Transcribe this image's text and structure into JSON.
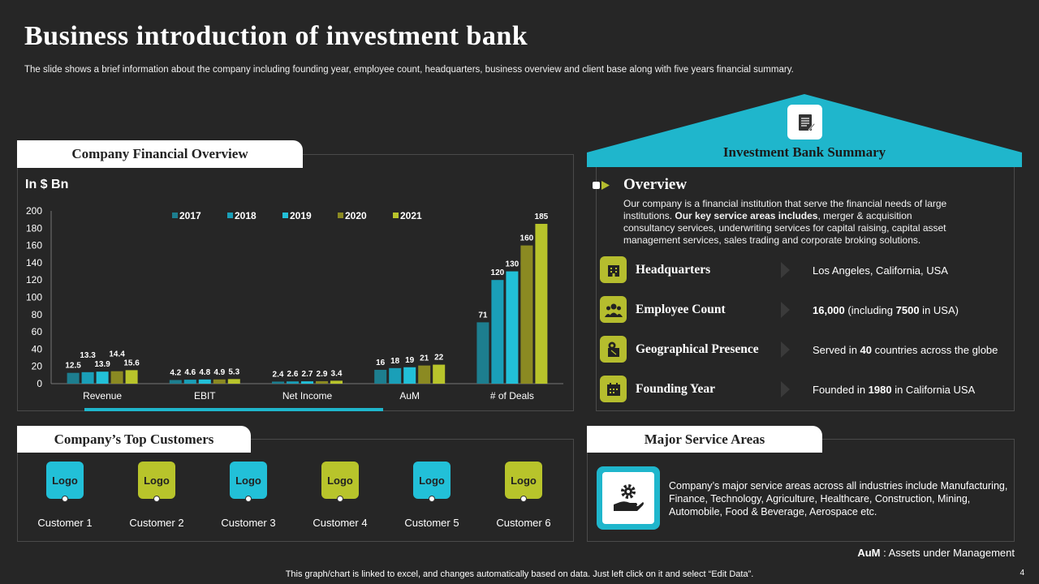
{
  "header": {
    "title": "Business introduction of investment bank",
    "subtitle": "The slide shows a brief information about the company including founding year, employee count, headquarters, business overview and client base along with five years financial summary."
  },
  "financial": {
    "tab_label": "Company Financial Overview",
    "unit": "In $ Bn"
  },
  "chart_data": {
    "type": "bar",
    "categories": [
      "Revenue",
      "EBIT",
      "Net Income",
      "AuM",
      "# of Deals"
    ],
    "series": [
      {
        "name": "2017",
        "color": "#1d7e8f",
        "values": [
          12.5,
          4.2,
          2.4,
          16,
          71
        ]
      },
      {
        "name": "2018",
        "color": "#1a9fb8",
        "values": [
          13.3,
          4.6,
          2.6,
          18,
          120
        ]
      },
      {
        "name": "2019",
        "color": "#22c0d8",
        "values": [
          13.9,
          4.8,
          2.7,
          19,
          130
        ]
      },
      {
        "name": "2020",
        "color": "#8b8a22",
        "values": [
          14.4,
          4.9,
          2.9,
          21,
          160
        ]
      },
      {
        "name": "2021",
        "color": "#b8c42b",
        "values": [
          15.6,
          5.3,
          3.4,
          22,
          185
        ]
      }
    ],
    "ylim": [
      0,
      200
    ],
    "yticks": [
      0,
      20,
      40,
      60,
      80,
      100,
      120,
      140,
      160,
      180,
      200
    ],
    "legend_position": "top-center"
  },
  "summary": {
    "title": "Investment Bank Summary",
    "overview_heading": "Overview",
    "overview_text_1": "Our company is a financial institution that serve the financial needs of large institutions. ",
    "overview_text_bold": "Our key service areas includes",
    "overview_text_2": ", merger & acquisition consultancy services, underwriting services for capital raising, capital asset management services, sales trading and corporate broking solutions.",
    "rows": [
      {
        "label": "Headquarters",
        "icon": "building-icon",
        "value_pre": "Los Angeles, California,  USA",
        "value_bold": "",
        "value_mid": "",
        "value_bold2": "",
        "value_post": ""
      },
      {
        "label": "Employee Count",
        "icon": "people-icon",
        "value_pre": "",
        "value_bold": "16,000",
        "value_mid": " (including ",
        "value_bold2": "7500",
        "value_post": " in USA)"
      },
      {
        "label": "Geographical Presence",
        "icon": "map-pin-icon",
        "value_pre": "Served  in ",
        "value_bold": "40",
        "value_mid": " countries across the globe",
        "value_bold2": "",
        "value_post": ""
      },
      {
        "label": "Founding Year",
        "icon": "calendar-icon",
        "value_pre": "Founded  in ",
        "value_bold": "1980",
        "value_mid": " in California  USA",
        "value_bold2": "",
        "value_post": ""
      }
    ]
  },
  "customers": {
    "tab_label": "Company’s Top Customers",
    "items": [
      {
        "logo": "Logo",
        "name": "Customer 1",
        "color": "#22c0d8"
      },
      {
        "logo": "Logo",
        "name": "Customer 2",
        "color": "#b8c42b"
      },
      {
        "logo": "Logo",
        "name": "Customer 3",
        "color": "#22c0d8"
      },
      {
        "logo": "Logo",
        "name": "Customer 4",
        "color": "#b8c42b"
      },
      {
        "logo": "Logo",
        "name": "Customer 5",
        "color": "#22c0d8"
      },
      {
        "logo": "Logo",
        "name": "Customer 6",
        "color": "#b8c42b"
      }
    ]
  },
  "services": {
    "tab_label": "Major Service Areas",
    "text": "Company’s major service  areas across all industries include Manufacturing, Finance, Technology, Agriculture, Healthcare, Construction, Mining, Automobile, Food & Beverage,  Aerospace etc."
  },
  "notes": {
    "aum_abbr": "AuM",
    "aum_def": " :  Assets under Management",
    "footer": "This graph/chart is linked to excel,  and changes automatically based on data. Just left click on it and select “Edit Data”.",
    "page_number": "4"
  },
  "colors": {
    "accent_teal": "#1fb6cc",
    "accent_olive": "#b5bd2e",
    "background": "#262626"
  }
}
